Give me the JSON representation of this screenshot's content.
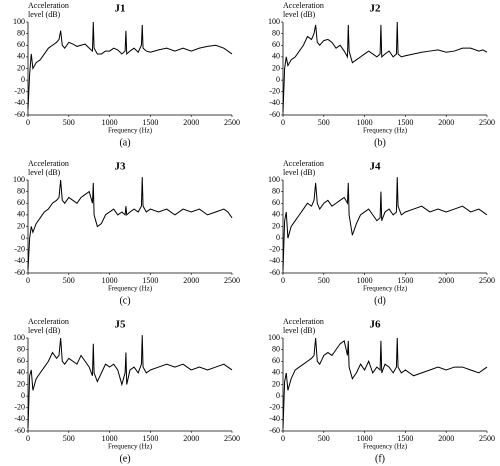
{
  "chart_data": [
    {
      "type": "line",
      "title": "J1",
      "y_label": "Acceleration level (dB)",
      "x_label": "Frequency (Hz)",
      "caption": "(a)",
      "color": "#000000",
      "x": [
        0,
        20,
        40,
        60,
        100,
        150,
        200,
        250,
        300,
        350,
        380,
        400,
        420,
        450,
        500,
        550,
        600,
        650,
        700,
        750,
        790,
        800,
        810,
        850,
        900,
        950,
        1000,
        1050,
        1100,
        1150,
        1190,
        1200,
        1210,
        1250,
        1300,
        1350,
        1390,
        1400,
        1410,
        1450,
        1500,
        1600,
        1700,
        1800,
        1900,
        2000,
        2100,
        2200,
        2300,
        2400,
        2450,
        2500
      ],
      "values": [
        -50,
        10,
        45,
        20,
        30,
        35,
        45,
        55,
        60,
        65,
        70,
        85,
        60,
        55,
        65,
        62,
        58,
        60,
        62,
        55,
        50,
        100,
        55,
        45,
        45,
        50,
        50,
        55,
        52,
        45,
        50,
        85,
        45,
        50,
        55,
        48,
        60,
        95,
        55,
        50,
        48,
        52,
        55,
        50,
        55,
        50,
        55,
        58,
        60,
        55,
        50,
        45
      ],
      "xlim": [
        0,
        2500
      ],
      "xticks": [
        0,
        500,
        1000,
        1500,
        2000,
        2500
      ],
      "ylim": [
        -60,
        100
      ],
      "yticks": [
        -60,
        -40,
        -20,
        0,
        20,
        40,
        60,
        80,
        100
      ]
    },
    {
      "type": "line",
      "title": "J2",
      "y_label": "Acceleration level (dB)",
      "x_label": "Frequency (Hz)",
      "caption": "(b)",
      "color": "#000000",
      "x": [
        0,
        20,
        40,
        60,
        100,
        150,
        200,
        250,
        300,
        350,
        380,
        400,
        420,
        450,
        500,
        550,
        600,
        650,
        700,
        750,
        790,
        800,
        810,
        850,
        900,
        950,
        1000,
        1050,
        1100,
        1150,
        1190,
        1200,
        1210,
        1250,
        1300,
        1350,
        1390,
        1400,
        1410,
        1450,
        1500,
        1600,
        1700,
        1800,
        1900,
        2000,
        2100,
        2200,
        2300,
        2400,
        2450,
        2500
      ],
      "values": [
        -55,
        20,
        40,
        25,
        35,
        40,
        50,
        60,
        75,
        70,
        80,
        95,
        65,
        60,
        68,
        70,
        65,
        55,
        60,
        50,
        40,
        95,
        50,
        30,
        35,
        40,
        45,
        50,
        45,
        40,
        45,
        95,
        40,
        45,
        50,
        40,
        45,
        100,
        45,
        40,
        42,
        45,
        48,
        50,
        52,
        48,
        50,
        55,
        55,
        50,
        52,
        48
      ],
      "xlim": [
        0,
        2500
      ],
      "xticks": [
        0,
        500,
        1000,
        1500,
        2000,
        2500
      ],
      "ylim": [
        -60,
        100
      ],
      "yticks": [
        -60,
        -40,
        -20,
        0,
        20,
        40,
        60,
        80,
        100
      ]
    },
    {
      "type": "line",
      "title": "J3",
      "y_label": "Acceleration level (dB)",
      "x_label": "Frequency (Hz)",
      "caption": "(c)",
      "color": "#000000",
      "x": [
        0,
        20,
        40,
        60,
        100,
        150,
        200,
        250,
        300,
        350,
        380,
        400,
        420,
        450,
        500,
        550,
        600,
        650,
        700,
        750,
        790,
        800,
        810,
        850,
        900,
        950,
        1000,
        1050,
        1100,
        1150,
        1190,
        1200,
        1210,
        1250,
        1300,
        1350,
        1390,
        1400,
        1410,
        1450,
        1500,
        1600,
        1700,
        1800,
        1900,
        2000,
        2100,
        2200,
        2300,
        2400,
        2450,
        2500
      ],
      "values": [
        -55,
        0,
        20,
        10,
        25,
        35,
        45,
        50,
        60,
        65,
        70,
        100,
        65,
        60,
        70,
        65,
        60,
        70,
        75,
        80,
        60,
        95,
        40,
        20,
        25,
        40,
        45,
        50,
        40,
        45,
        40,
        55,
        40,
        45,
        50,
        45,
        55,
        105,
        55,
        45,
        50,
        45,
        50,
        40,
        50,
        45,
        50,
        40,
        45,
        50,
        45,
        35
      ],
      "xlim": [
        0,
        2500
      ],
      "xticks": [
        0,
        500,
        1000,
        1500,
        2000,
        2500
      ],
      "ylim": [
        -60,
        100
      ],
      "yticks": [
        -60,
        -40,
        -20,
        0,
        20,
        40,
        60,
        80,
        100
      ]
    },
    {
      "type": "line",
      "title": "J4",
      "y_label": "Acceleration level (dB)",
      "x_label": "Frequency (Hz)",
      "caption": "(d)",
      "color": "#000000",
      "x": [
        0,
        20,
        40,
        60,
        100,
        150,
        200,
        250,
        300,
        350,
        380,
        400,
        420,
        450,
        500,
        550,
        600,
        650,
        700,
        750,
        790,
        800,
        810,
        850,
        900,
        950,
        1000,
        1050,
        1100,
        1150,
        1190,
        1200,
        1210,
        1250,
        1300,
        1350,
        1390,
        1400,
        1410,
        1450,
        1500,
        1600,
        1700,
        1800,
        1900,
        2000,
        2100,
        2200,
        2300,
        2400,
        2450,
        2500
      ],
      "values": [
        -55,
        30,
        45,
        0,
        20,
        30,
        40,
        50,
        60,
        55,
        65,
        95,
        60,
        50,
        60,
        65,
        55,
        60,
        65,
        70,
        60,
        95,
        40,
        5,
        25,
        40,
        45,
        50,
        40,
        30,
        35,
        80,
        30,
        45,
        50,
        40,
        45,
        105,
        55,
        40,
        45,
        50,
        55,
        45,
        50,
        45,
        50,
        55,
        45,
        50,
        45,
        40
      ],
      "xlim": [
        0,
        2500
      ],
      "xticks": [
        0,
        500,
        1000,
        1500,
        2000,
        2500
      ],
      "ylim": [
        -60,
        100
      ],
      "yticks": [
        -60,
        -40,
        -20,
        0,
        20,
        40,
        60,
        80,
        100
      ]
    },
    {
      "type": "line",
      "title": "J5",
      "y_label": "Acceleration level (dB)",
      "x_label": "Frequency (Hz)",
      "caption": "(e)",
      "color": "#000000",
      "x": [
        0,
        20,
        40,
        60,
        100,
        150,
        200,
        250,
        300,
        350,
        380,
        400,
        420,
        450,
        500,
        550,
        600,
        650,
        700,
        750,
        790,
        800,
        810,
        850,
        900,
        950,
        1000,
        1050,
        1100,
        1150,
        1190,
        1200,
        1210,
        1250,
        1300,
        1350,
        1390,
        1400,
        1410,
        1450,
        1500,
        1600,
        1700,
        1800,
        1900,
        2000,
        2100,
        2200,
        2300,
        2400,
        2450,
        2500
      ],
      "values": [
        -55,
        35,
        45,
        10,
        30,
        40,
        50,
        60,
        75,
        65,
        70,
        100,
        60,
        55,
        65,
        60,
        55,
        70,
        60,
        50,
        35,
        90,
        40,
        25,
        40,
        55,
        50,
        55,
        45,
        20,
        40,
        75,
        20,
        45,
        50,
        40,
        55,
        105,
        50,
        40,
        45,
        50,
        55,
        50,
        55,
        45,
        50,
        45,
        50,
        55,
        50,
        45
      ],
      "xlim": [
        0,
        2500
      ],
      "xticks": [
        0,
        500,
        1000,
        1500,
        2000,
        2500
      ],
      "ylim": [
        -60,
        100
      ],
      "yticks": [
        -60,
        -40,
        -20,
        0,
        20,
        40,
        60,
        80,
        100
      ]
    },
    {
      "type": "line",
      "title": "J6",
      "y_label": "Acceleration level (dB)",
      "x_label": "Frequency (Hz)",
      "caption": "(f)",
      "color": "#000000",
      "x": [
        0,
        20,
        40,
        60,
        100,
        150,
        200,
        250,
        300,
        350,
        380,
        400,
        420,
        450,
        500,
        550,
        600,
        650,
        700,
        750,
        790,
        800,
        810,
        850,
        900,
        950,
        1000,
        1050,
        1100,
        1150,
        1190,
        1200,
        1210,
        1250,
        1300,
        1350,
        1390,
        1400,
        1410,
        1450,
        1500,
        1600,
        1700,
        1800,
        1900,
        2000,
        2100,
        2200,
        2300,
        2400,
        2450,
        2500
      ],
      "values": [
        -55,
        25,
        40,
        10,
        30,
        45,
        50,
        55,
        60,
        65,
        70,
        100,
        60,
        55,
        70,
        75,
        70,
        80,
        90,
        95,
        70,
        95,
        50,
        30,
        40,
        55,
        45,
        60,
        40,
        50,
        45,
        95,
        40,
        55,
        50,
        40,
        50,
        100,
        50,
        40,
        45,
        35,
        40,
        45,
        50,
        45,
        50,
        50,
        45,
        40,
        45,
        50
      ],
      "xlim": [
        0,
        2500
      ],
      "xticks": [
        0,
        500,
        1000,
        1500,
        2000,
        2500
      ],
      "ylim": [
        -60,
        100
      ],
      "yticks": [
        -60,
        -40,
        -20,
        0,
        20,
        40,
        60,
        80,
        100
      ]
    }
  ]
}
